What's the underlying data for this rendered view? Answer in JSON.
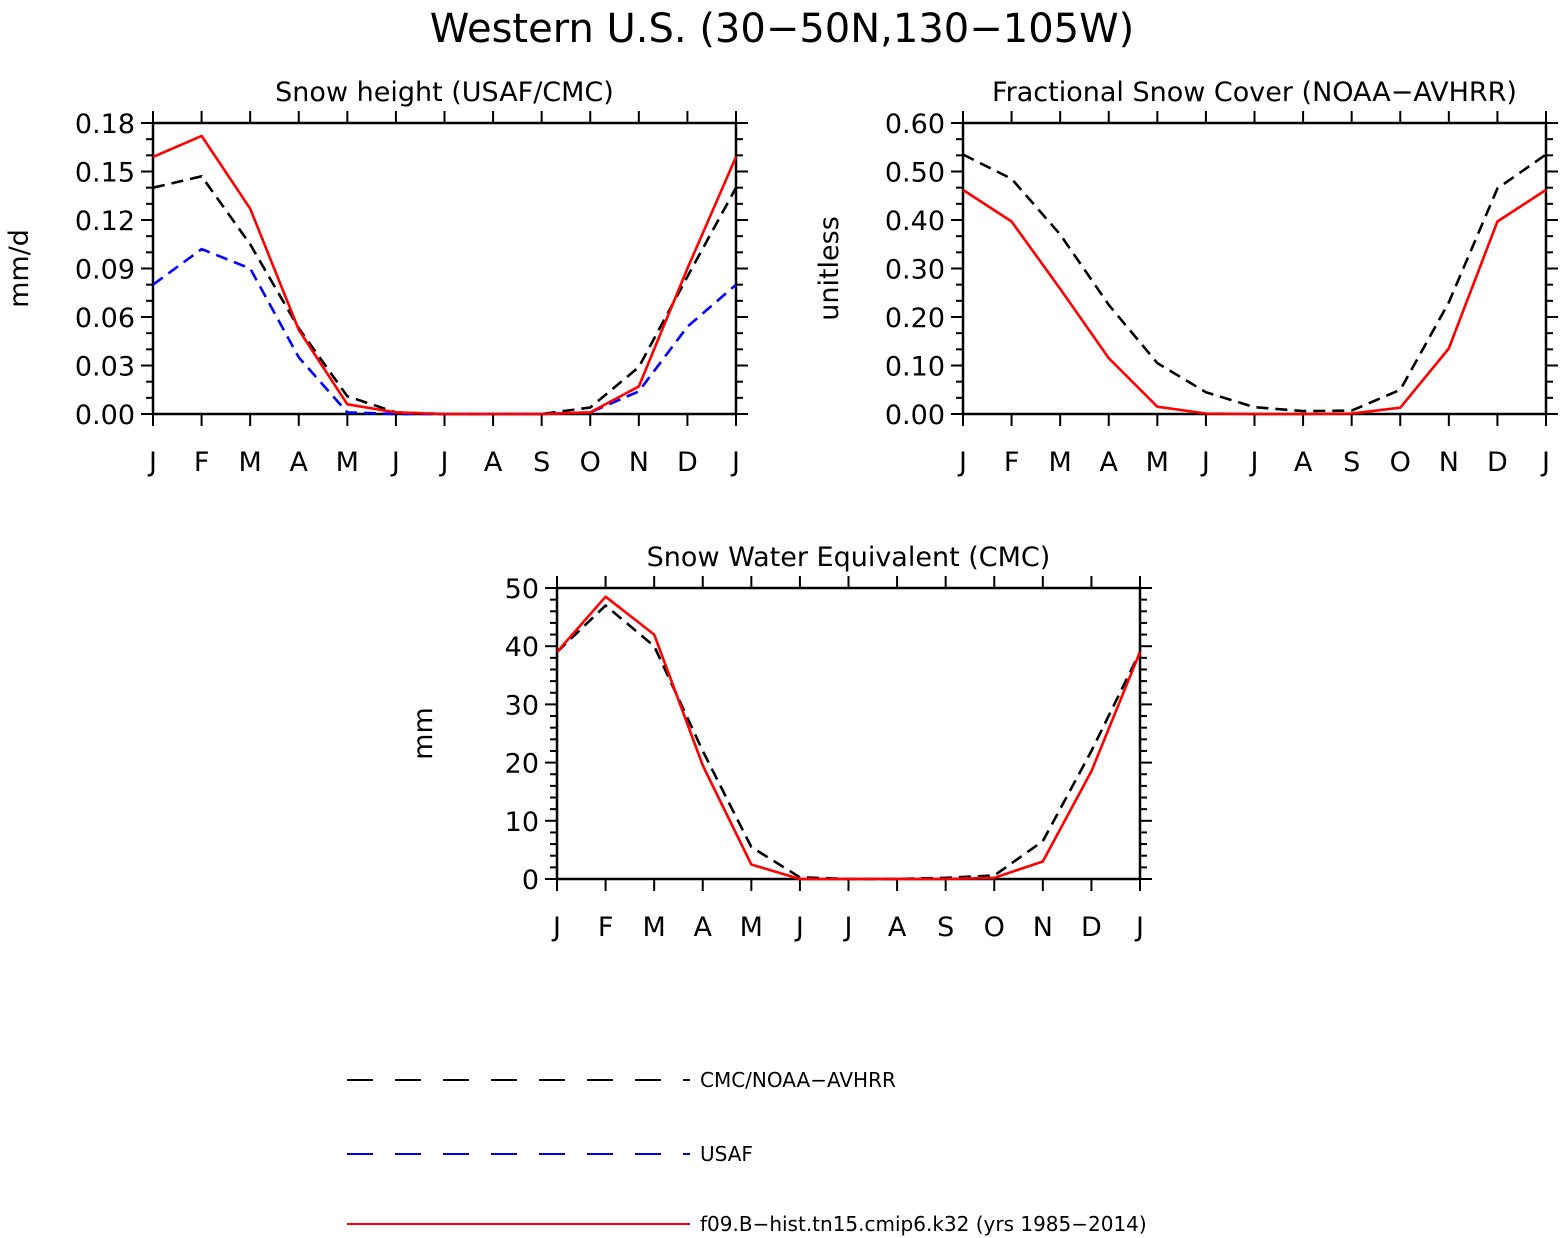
{
  "title": "Western U.S. (30−50N,130−105W)",
  "months": [
    "J",
    "F",
    "M",
    "A",
    "M",
    "J",
    "J",
    "A",
    "S",
    "O",
    "N",
    "D",
    "J"
  ],
  "legend": [
    {
      "label": "CMC/NOAA−AVHRR",
      "color": "#000000",
      "dashed": true
    },
    {
      "label": "USAF",
      "color": "#0000ff",
      "dashed": true
    },
    {
      "label": "f09.B−hist.tn15.cmip6.k32 (yrs 1985−2014)",
      "color": "#ff0000",
      "dashed": false
    }
  ],
  "chart_data": [
    {
      "type": "line",
      "title": "Snow height (USAF/CMC)",
      "ylabel": "mm/d",
      "ylim": [
        0,
        0.18
      ],
      "yticks": [
        "0.00",
        "0.03",
        "0.06",
        "0.09",
        "0.12",
        "0.15",
        "0.18"
      ],
      "categories": [
        "J",
        "F",
        "M",
        "A",
        "M",
        "J",
        "J",
        "A",
        "S",
        "O",
        "N",
        "D",
        "J"
      ],
      "series": [
        {
          "name": "CMC/NOAA−AVHRR",
          "color": "#000000",
          "dashed": true,
          "values": [
            0.14,
            0.147,
            0.105,
            0.053,
            0.011,
            0.001,
            0.0,
            0.0,
            0.0,
            0.004,
            0.029,
            0.085,
            0.14
          ]
        },
        {
          "name": "USAF",
          "color": "#0000ff",
          "dashed": true,
          "values": [
            0.08,
            0.102,
            0.09,
            0.035,
            0.001,
            0.0,
            0.0,
            0.0,
            0.0,
            0.001,
            0.014,
            0.054,
            0.08
          ]
        },
        {
          "name": "f09.B−hist.tn15.cmip6.k32 (yrs 1985−2014)",
          "color": "#ff0000",
          "dashed": false,
          "values": [
            0.159,
            0.172,
            0.127,
            0.052,
            0.006,
            0.001,
            0.0,
            0.0,
            0.0,
            0.001,
            0.017,
            0.09,
            0.159
          ]
        }
      ]
    },
    {
      "type": "line",
      "title": "Fractional Snow Cover (NOAA−AVHRR)",
      "ylabel": "unitless",
      "ylim": [
        0,
        0.6
      ],
      "yticks": [
        "0.00",
        "0.10",
        "0.20",
        "0.30",
        "0.40",
        "0.50",
        "0.60"
      ],
      "categories": [
        "J",
        "F",
        "M",
        "A",
        "M",
        "J",
        "J",
        "A",
        "S",
        "O",
        "N",
        "D",
        "J"
      ],
      "series": [
        {
          "name": "CMC/NOAA−AVHRR",
          "color": "#000000",
          "dashed": true,
          "values": [
            0.535,
            0.485,
            0.37,
            0.225,
            0.105,
            0.045,
            0.014,
            0.006,
            0.007,
            0.05,
            0.23,
            0.465,
            0.535
          ]
        },
        {
          "name": "f09.B−hist.tn15.cmip6.k32 (yrs 1985−2014)",
          "color": "#ff0000",
          "dashed": false,
          "values": [
            0.462,
            0.397,
            0.258,
            0.115,
            0.015,
            0.001,
            0.0,
            0.0,
            0.001,
            0.013,
            0.135,
            0.397,
            0.462
          ]
        }
      ]
    },
    {
      "type": "line",
      "title": "Snow Water Equivalent (CMC)",
      "ylabel": "mm",
      "ylim": [
        0,
        50
      ],
      "yticks": [
        "0",
        "10",
        "20",
        "30",
        "40",
        "50"
      ],
      "categories": [
        "J",
        "F",
        "M",
        "A",
        "M",
        "J",
        "J",
        "A",
        "S",
        "O",
        "N",
        "D",
        "J"
      ],
      "series": [
        {
          "name": "CMC/NOAA−AVHRR",
          "color": "#000000",
          "dashed": true,
          "values": [
            39.0,
            47.0,
            40.0,
            22.0,
            5.5,
            0.3,
            0.0,
            0.0,
            0.2,
            0.6,
            6.5,
            22.0,
            39.0
          ]
        },
        {
          "name": "f09.B−hist.tn15.cmip6.k32 (yrs 1985−2014)",
          "color": "#ff0000",
          "dashed": false,
          "values": [
            39.0,
            48.5,
            42.0,
            19.5,
            2.5,
            0.0,
            0.0,
            0.0,
            0.0,
            0.2,
            3.0,
            18.5,
            39.0
          ]
        }
      ]
    }
  ]
}
